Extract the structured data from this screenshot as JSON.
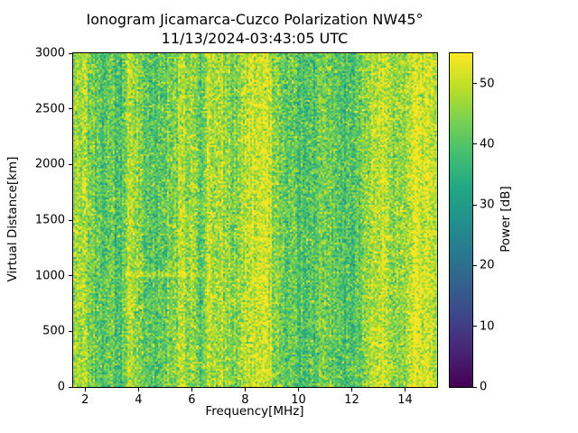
{
  "figure": {
    "background": "#ffffff"
  },
  "chart_data": {
    "type": "heatmap",
    "title": "Ionogram Jicamarca-Cuzco Polarization NW45°",
    "subtitle": "11/13/2024-03:43:05 UTC",
    "xlabel": "Frequency[MHz]",
    "ylabel": "Virtual Distance[km]",
    "xlim": [
      1.55,
      15.2
    ],
    "ylim": [
      0,
      3000
    ],
    "x_ticks": [
      2,
      4,
      6,
      8,
      10,
      12,
      14
    ],
    "y_ticks": [
      0,
      500,
      1000,
      1500,
      2000,
      2500,
      3000
    ],
    "colormap": "viridis",
    "colorbar": {
      "label": "Power [dB]",
      "min": 0,
      "max": 55,
      "ticks": [
        0,
        10,
        20,
        30,
        40,
        50
      ]
    },
    "noise_sigma_db": 5.0,
    "column_jitter_db": 1.8,
    "frequency_profile": {
      "freq_mhz": [
        1.55,
        2.0,
        2.3,
        2.6,
        3.0,
        3.3,
        3.6,
        4.0,
        4.4,
        4.8,
        5.2,
        5.6,
        6.0,
        6.3,
        6.6,
        6.9,
        7.2,
        7.6,
        8.0,
        8.4,
        8.8,
        9.1,
        9.4,
        9.7,
        10.0,
        10.4,
        10.8,
        11.2,
        11.6,
        12.0,
        12.4,
        12.8,
        13.2,
        13.6,
        14.0,
        14.4,
        14.8,
        15.2
      ],
      "mean_power_db": [
        46,
        48,
        43,
        39,
        43,
        37,
        50,
        46,
        39,
        41,
        43,
        50,
        45,
        41,
        46,
        50,
        46,
        44,
        48,
        52,
        51,
        46,
        40,
        43,
        40,
        39,
        44,
        42,
        40,
        39,
        44,
        47,
        50,
        46,
        48,
        52,
        51,
        49
      ]
    },
    "features": [
      {
        "type": "horizontal-streak",
        "distance_km": 1020,
        "freq_range_mhz": [
          3.5,
          6.5
        ],
        "boost_db": 5
      }
    ]
  }
}
